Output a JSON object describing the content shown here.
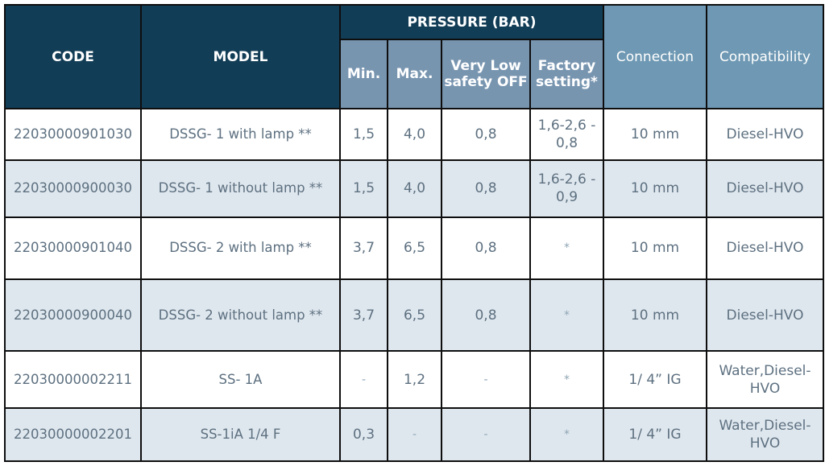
{
  "headers": {
    "code": "CODE",
    "model": "MODEL",
    "pressure_group": "PRESSURE (BAR)",
    "min": "Min.",
    "max": "Max.",
    "very_low": "Very Low safety OFF",
    "factory": "Factory setting*",
    "connection": "Connection",
    "compatibility": "Compatibility"
  },
  "rows": [
    {
      "code": "22030000901030",
      "model": "DSSG- 1 with lamp **",
      "min": "1,5",
      "max": "4,0",
      "very_low": "0,8",
      "factory": "1,6-2,6 - 0,8",
      "connection": "10 mm",
      "compatibility": "Diesel-HVO"
    },
    {
      "code": "22030000900030",
      "model": "DSSG- 1 without lamp **",
      "min": "1,5",
      "max": "4,0",
      "very_low": "0,8",
      "factory": "1,6-2,6 - 0,9",
      "connection": "10 mm",
      "compatibility": "Diesel-HVO"
    },
    {
      "code": "22030000901040",
      "model": "DSSG- 2 with lamp **",
      "min": "3,7",
      "max": "6,5",
      "very_low": "0,8",
      "factory": "*",
      "connection": "10 mm",
      "compatibility": "Diesel-HVO"
    },
    {
      "code": "22030000900040",
      "model": "DSSG- 2 without lamp **",
      "min": "3,7",
      "max": "6,5",
      "very_low": "0,8",
      "factory": "*",
      "connection": "10 mm",
      "compatibility": "Diesel-HVO"
    },
    {
      "code": "22030000002211",
      "model": "SS- 1A",
      "min": "-",
      "max": "1,2",
      "very_low": "-",
      "factory": "*",
      "connection": "1/ 4” IG",
      "compatibility": "Water,Diesel-HVO"
    },
    {
      "code": "22030000002201",
      "model": "SS-1iA 1/4 F",
      "min": "0,3",
      "max": "-",
      "very_low": "-",
      "factory": "*",
      "connection": "1/ 4” IG",
      "compatibility": "Water,Diesel-HVO"
    }
  ],
  "colors": {
    "header_dark": "#123d56",
    "header_mid": "#7895b0",
    "header_light": "#6e98b3",
    "row_alt": "#dfe7ee",
    "text": "#5d7080"
  }
}
